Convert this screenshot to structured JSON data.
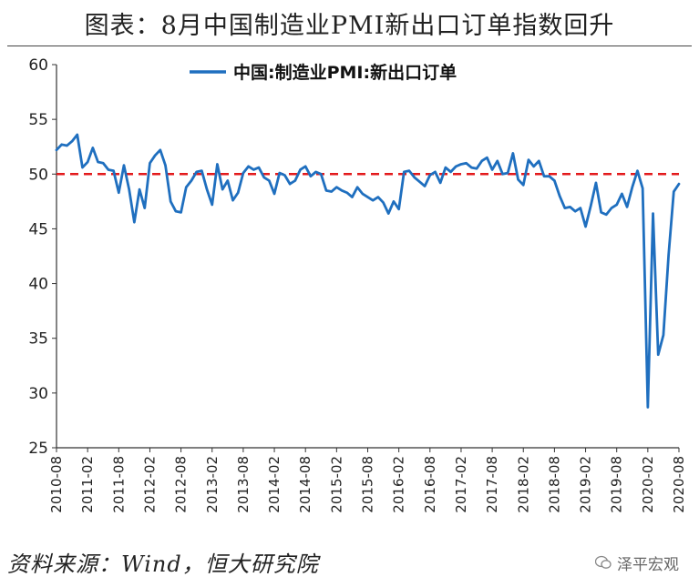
{
  "title": "图表：8月中国制造业PMI新出口订单指数回升",
  "source": "资料来源：Wind，恒大研究院",
  "watermark": "泽平宏观",
  "icons": {
    "watermark": "wechat-logo-icon"
  },
  "colors": {
    "series": "#1f6fbf",
    "reference": "#e31a1c",
    "axis": "#333333",
    "text": "#222222"
  },
  "chart_data": {
    "type": "line",
    "title": "",
    "xlabel": "",
    "ylabel": "",
    "ylim": [
      25,
      60
    ],
    "yticks": [
      25,
      30,
      35,
      40,
      45,
      50,
      55,
      60
    ],
    "xlim": [
      "2010-08",
      "2020-08"
    ],
    "tick_labels": [
      "2010-08",
      "2011-02",
      "2011-08",
      "2012-02",
      "2012-08",
      "2013-02",
      "2013-08",
      "2014-02",
      "2014-08",
      "2015-02",
      "2015-08",
      "2016-02",
      "2016-08",
      "2017-02",
      "2017-08",
      "2018-02",
      "2018-08",
      "2019-02",
      "2019-08",
      "2020-02",
      "2020-08"
    ],
    "legend": {
      "position": "top-center",
      "entries": [
        "中国:制造业PMI:新出口订单"
      ]
    },
    "reference_line": {
      "value": 50,
      "style": "dashed"
    },
    "series": [
      {
        "name": "中国:制造业PMI:新出口订单",
        "x": [
          "2010-08",
          "2010-09",
          "2010-10",
          "2010-11",
          "2010-12",
          "2011-01",
          "2011-02",
          "2011-03",
          "2011-04",
          "2011-05",
          "2011-06",
          "2011-07",
          "2011-08",
          "2011-09",
          "2011-10",
          "2011-11",
          "2011-12",
          "2012-01",
          "2012-02",
          "2012-03",
          "2012-04",
          "2012-05",
          "2012-06",
          "2012-07",
          "2012-08",
          "2012-09",
          "2012-10",
          "2012-11",
          "2012-12",
          "2013-01",
          "2013-02",
          "2013-03",
          "2013-04",
          "2013-05",
          "2013-06",
          "2013-07",
          "2013-08",
          "2013-09",
          "2013-10",
          "2013-11",
          "2013-12",
          "2014-01",
          "2014-02",
          "2014-03",
          "2014-04",
          "2014-05",
          "2014-06",
          "2014-07",
          "2014-08",
          "2014-09",
          "2014-10",
          "2014-11",
          "2014-12",
          "2015-01",
          "2015-02",
          "2015-03",
          "2015-04",
          "2015-05",
          "2015-06",
          "2015-07",
          "2015-08",
          "2015-09",
          "2015-10",
          "2015-11",
          "2015-12",
          "2016-01",
          "2016-02",
          "2016-03",
          "2016-04",
          "2016-05",
          "2016-06",
          "2016-07",
          "2016-08",
          "2016-09",
          "2016-10",
          "2016-11",
          "2016-12",
          "2017-01",
          "2017-02",
          "2017-03",
          "2017-04",
          "2017-05",
          "2017-06",
          "2017-07",
          "2017-08",
          "2017-09",
          "2017-10",
          "2017-11",
          "2017-12",
          "2018-01",
          "2018-02",
          "2018-03",
          "2018-04",
          "2018-05",
          "2018-06",
          "2018-07",
          "2018-08",
          "2018-09",
          "2018-10",
          "2018-11",
          "2018-12",
          "2019-01",
          "2019-02",
          "2019-03",
          "2019-04",
          "2019-05",
          "2019-06",
          "2019-07",
          "2019-08",
          "2019-09",
          "2019-10",
          "2019-11",
          "2019-12",
          "2020-01",
          "2020-02",
          "2020-03",
          "2020-04",
          "2020-05",
          "2020-06",
          "2020-07",
          "2020-08"
        ],
        "values": [
          52.2,
          52.7,
          52.6,
          53.0,
          53.6,
          50.6,
          51.1,
          52.4,
          51.1,
          51.0,
          50.4,
          50.3,
          48.3,
          50.8,
          48.6,
          45.6,
          48.6,
          46.9,
          51.0,
          51.7,
          52.2,
          50.8,
          47.5,
          46.6,
          46.5,
          48.8,
          49.4,
          50.2,
          50.3,
          48.6,
          47.2,
          50.9,
          48.6,
          49.4,
          47.6,
          48.3,
          50.1,
          50.7,
          50.4,
          50.6,
          49.7,
          49.4,
          48.2,
          50.1,
          49.9,
          49.1,
          49.4,
          50.4,
          50.7,
          49.8,
          50.2,
          50.0,
          48.5,
          48.4,
          48.8,
          48.5,
          48.3,
          47.9,
          48.8,
          48.2,
          47.9,
          47.6,
          47.9,
          47.4,
          46.4,
          47.5,
          46.8,
          50.2,
          50.3,
          49.7,
          49.3,
          48.9,
          49.9,
          50.2,
          49.2,
          50.6,
          50.2,
          50.7,
          50.9,
          51.0,
          50.6,
          50.5,
          51.2,
          51.5,
          50.4,
          51.2,
          50.0,
          50.1,
          51.9,
          49.5,
          49.0,
          51.3,
          50.7,
          51.2,
          49.8,
          49.8,
          49.4,
          48.0,
          46.9,
          47.0,
          46.6,
          46.9,
          45.2,
          47.1,
          49.2,
          46.5,
          46.3,
          46.9,
          47.2,
          48.2,
          47.0,
          48.8,
          50.3,
          48.7,
          28.7,
          46.4,
          33.5,
          35.3,
          42.6,
          48.4,
          49.1
        ]
      }
    ]
  }
}
